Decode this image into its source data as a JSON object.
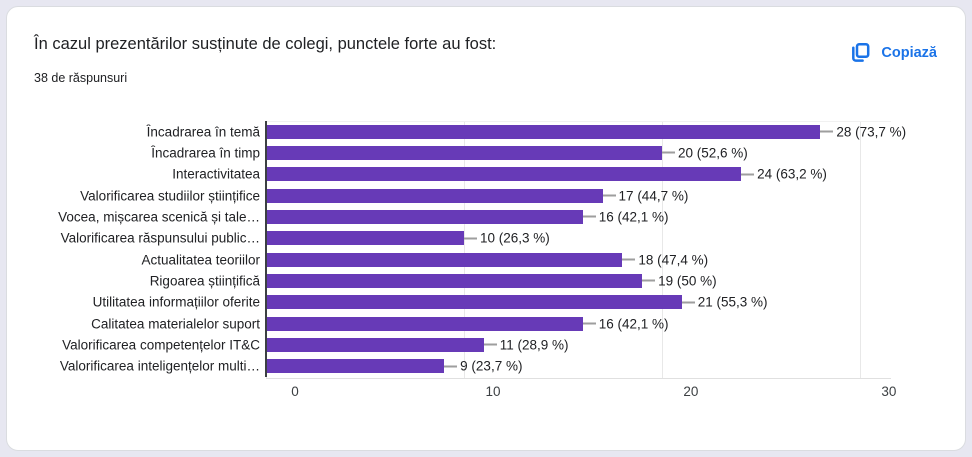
{
  "card": {
    "title": "În cazul prezentărilor susținute de colegi, punctele forte au fost:",
    "responses_count": "38 de răspunsuri",
    "copy_button": {
      "label": "Copiază"
    }
  },
  "colors": {
    "bar": "#673ab7",
    "accent_blue": "#1a73e8",
    "text": "#202124",
    "gridline": "#e8e8e8",
    "connector": "#9e9e9e"
  },
  "chart_data": {
    "type": "bar",
    "orientation": "horizontal",
    "title": "În cazul prezentărilor susținute de colegi, punctele forte au fost:",
    "subtitle": "38 de răspunsuri",
    "categories": [
      "Încadrarea în temă",
      "Încadrarea în timp",
      "Interactivitatea",
      "Valorificarea studiilor științifice",
      "Vocea, mișcarea scenică și tale…",
      "Valorificarea răspunsului public…",
      "Actualitatea teoriilor",
      "Rigoarea științifică",
      "Utilitatea informațiilor oferite",
      "Calitatea materialelor suport",
      "Valorificarea competențelor IT&C",
      "Valorificarea inteligențelor multi…"
    ],
    "values": [
      28,
      20,
      24,
      17,
      16,
      10,
      18,
      19,
      21,
      16,
      11,
      9
    ],
    "value_labels": [
      "28 (73,7 %)",
      "20 (52,6 %)",
      "24 (63,2 %)",
      "17 (44,7 %)",
      "16 (42,1 %)",
      "10 (26,3 %)",
      "18 (47,4 %)",
      "19 (50 %)",
      "21 (55,3 %)",
      "16 (42,1 %)",
      "11 (28,9 %)",
      "9 (23,7 %)"
    ],
    "x_ticks": [
      0,
      10,
      20,
      30
    ],
    "xlim": [
      0,
      31.57
    ],
    "xlabel": "",
    "ylabel": "",
    "grid": true,
    "legend": "none",
    "bar_color": "#673ab7"
  }
}
